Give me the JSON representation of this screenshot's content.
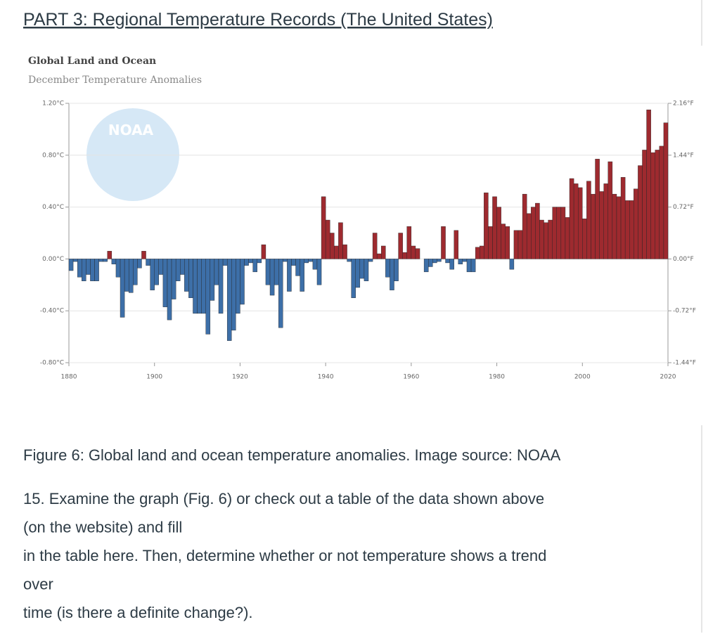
{
  "heading": "PART 3: Regional Temperature Records (The United States)",
  "logo_text": "NOAA",
  "chart_data": {
    "type": "bar",
    "title": "Global Land and Ocean",
    "subtitle": "December Temperature Anomalies",
    "positive_color": "#9e2a2f",
    "negative_color": "#3d6fa8",
    "grid": true,
    "x": [
      1880,
      1881,
      1882,
      1883,
      1884,
      1885,
      1886,
      1887,
      1888,
      1889,
      1890,
      1891,
      1892,
      1893,
      1894,
      1895,
      1896,
      1897,
      1898,
      1899,
      1900,
      1901,
      1902,
      1903,
      1904,
      1905,
      1906,
      1907,
      1908,
      1909,
      1910,
      1911,
      1912,
      1913,
      1914,
      1915,
      1916,
      1917,
      1918,
      1919,
      1920,
      1921,
      1922,
      1923,
      1924,
      1925,
      1926,
      1927,
      1928,
      1929,
      1930,
      1931,
      1932,
      1933,
      1934,
      1935,
      1936,
      1937,
      1938,
      1939,
      1940,
      1941,
      1942,
      1943,
      1944,
      1945,
      1946,
      1947,
      1948,
      1949,
      1950,
      1951,
      1952,
      1953,
      1954,
      1955,
      1956,
      1957,
      1958,
      1959,
      1960,
      1961,
      1962,
      1963,
      1964,
      1965,
      1966,
      1967,
      1968,
      1969,
      1970,
      1971,
      1972,
      1973,
      1974,
      1975,
      1976,
      1977,
      1978,
      1979,
      1980,
      1981,
      1982,
      1983,
      1984,
      1985,
      1986,
      1987,
      1988,
      1989,
      1990,
      1991,
      1992,
      1993,
      1994,
      1995,
      1996,
      1997,
      1998,
      1999,
      2000,
      2001,
      2002,
      2003,
      2004,
      2005,
      2006,
      2007,
      2008,
      2009,
      2010,
      2011,
      2012,
      2013,
      2014,
      2015,
      2016,
      2017,
      2018,
      2019
    ],
    "values": [
      -0.09,
      -0.02,
      -0.14,
      -0.17,
      -0.12,
      -0.17,
      -0.17,
      -0.02,
      -0.02,
      0.06,
      -0.04,
      -0.14,
      -0.45,
      -0.25,
      -0.26,
      -0.2,
      -0.07,
      0.06,
      -0.05,
      -0.24,
      -0.2,
      -0.12,
      -0.37,
      -0.47,
      -0.31,
      -0.17,
      -0.12,
      -0.25,
      -0.3,
      -0.42,
      -0.42,
      -0.42,
      -0.58,
      -0.32,
      -0.2,
      -0.42,
      -0.05,
      -0.63,
      -0.55,
      -0.42,
      -0.35,
      -0.05,
      -0.03,
      -0.1,
      -0.03,
      0.11,
      -0.2,
      -0.28,
      -0.2,
      -0.53,
      -0.02,
      -0.25,
      -0.05,
      -0.13,
      -0.25,
      -0.03,
      -0.02,
      -0.08,
      -0.2,
      0.48,
      0.3,
      0.2,
      0.1,
      0.28,
      0.11,
      -0.02,
      -0.3,
      -0.22,
      -0.15,
      -0.17,
      -0.02,
      0.2,
      0.04,
      0.1,
      -0.14,
      -0.24,
      -0.17,
      0.2,
      0.05,
      0.25,
      0.1,
      0.08,
      0.0,
      -0.1,
      -0.06,
      -0.03,
      -0.02,
      0.25,
      -0.03,
      -0.08,
      0.22,
      -0.04,
      -0.02,
      -0.1,
      -0.1,
      0.09,
      0.1,
      0.51,
      0.25,
      0.48,
      0.4,
      0.27,
      0.25,
      -0.08,
      0.22,
      0.22,
      0.5,
      0.35,
      0.4,
      0.43,
      0.3,
      0.28,
      0.3,
      0.4,
      0.4,
      0.4,
      0.32,
      0.62,
      0.58,
      0.55,
      0.31,
      0.6,
      0.5,
      0.77,
      0.52,
      0.58,
      0.75,
      0.5,
      0.48,
      0.63,
      0.45,
      0.45,
      0.54,
      0.72,
      0.84,
      1.15,
      0.82,
      0.84,
      0.87,
      1.05
    ],
    "xlim": [
      1880,
      2020
    ],
    "xticks": [
      1880,
      1900,
      1920,
      1940,
      1960,
      1980,
      2000,
      2020
    ],
    "ylim": [
      -0.8,
      1.2
    ],
    "yticks": [
      {
        "value": -0.8,
        "label": "-0.80°C"
      },
      {
        "value": -0.4,
        "label": "-0.40°C"
      },
      {
        "value": 0,
        "label": "0.00°C"
      },
      {
        "value": 0.4,
        "label": "0.40°C"
      },
      {
        "value": 0.8,
        "label": "0.80°C"
      },
      {
        "value": 1.2,
        "label": "1.20°C"
      }
    ],
    "y2lim": [
      -1.44,
      2.16
    ],
    "y2ticks": [
      {
        "value": -1.44,
        "label": "-1.44°F"
      },
      {
        "value": -0.72,
        "label": "-0.72°F"
      },
      {
        "value": 0,
        "label": "0.00°F"
      },
      {
        "value": 0.72,
        "label": "0.72°F"
      },
      {
        "value": 1.44,
        "label": "1.44°F"
      },
      {
        "value": 2.16,
        "label": "2.16°F"
      }
    ]
  },
  "caption": "Figure 6: Global land and ocean temperature anomalies. Image source: NOAA",
  "question": [
    "15. Examine the graph (Fig. 6) or check out a table of the data shown above",
    "(on the website) and fill",
    "in the table here. Then, determine whether or not temperature shows a trend",
    "over",
    "time (is there a definite change?)."
  ]
}
